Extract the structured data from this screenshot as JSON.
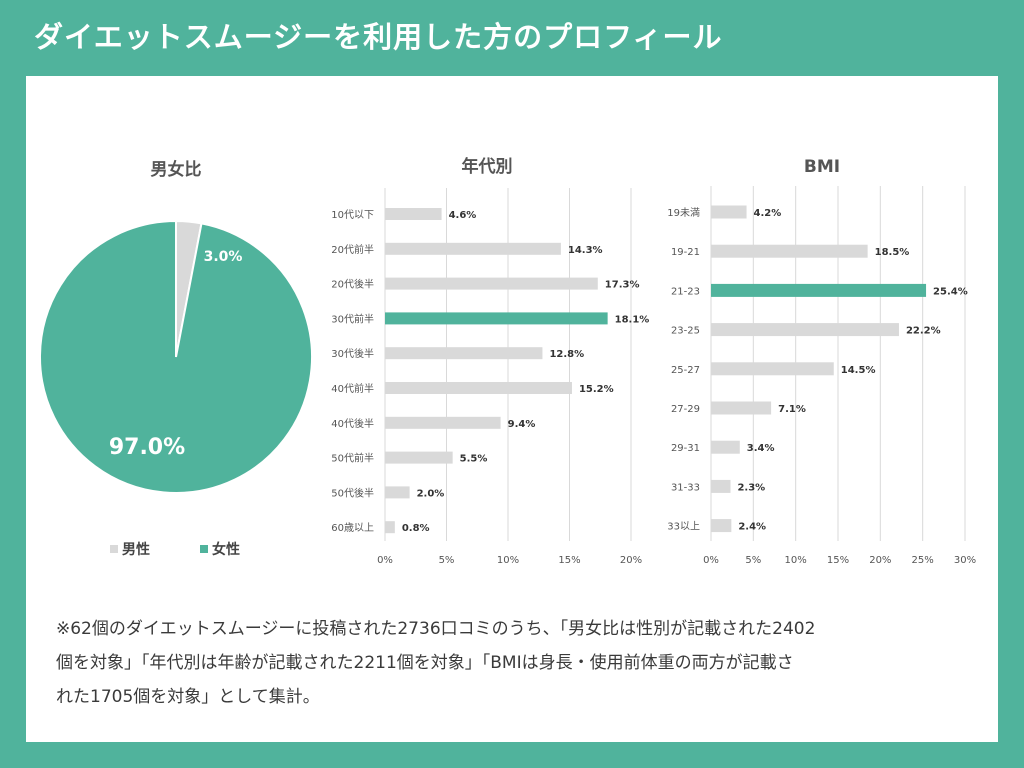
{
  "header": {
    "title": "ダイエットスムージーを利用した方のプロフィール"
  },
  "colors": {
    "accent": "#50b39c",
    "gray": "#d9d9d9",
    "white": "#ffffff"
  },
  "chart_data": [
    {
      "type": "pie",
      "title": "男女比",
      "categories": [
        "男性",
        "女性"
      ],
      "values": [
        3.0,
        97.0
      ],
      "labels": [
        "3.0%",
        "97.0%"
      ],
      "legend": "bottom"
    },
    {
      "type": "bar",
      "orientation": "horizontal",
      "title": "年代別",
      "categories": [
        "10代以下",
        "20代前半",
        "20代後半",
        "30代前半",
        "30代後半",
        "40代前半",
        "40代後半",
        "50代前半",
        "50代後半",
        "60歳以上"
      ],
      "values": [
        4.6,
        14.3,
        17.3,
        18.1,
        12.8,
        15.2,
        9.4,
        5.5,
        2.0,
        0.8
      ],
      "labels": [
        "4.6%",
        "14.3%",
        "17.3%",
        "18.1%",
        "12.8%",
        "15.2%",
        "9.4%",
        "5.5%",
        "2.0%",
        "0.8%"
      ],
      "highlight_index": 3,
      "xlim": [
        0,
        20
      ],
      "xticks": [
        "0%",
        "5%",
        "10%",
        "15%",
        "20%"
      ],
      "grid": true
    },
    {
      "type": "bar",
      "orientation": "horizontal",
      "title": "BMI",
      "categories": [
        "19未満",
        "19-21",
        "21-23",
        "23-25",
        "25-27",
        "27-29",
        "29-31",
        "31-33",
        "33以上"
      ],
      "values": [
        4.2,
        18.5,
        25.4,
        22.2,
        14.5,
        7.1,
        3.4,
        2.3,
        2.4
      ],
      "labels": [
        "4.2%",
        "18.5%",
        "25.4%",
        "22.2%",
        "14.5%",
        "7.1%",
        "3.4%",
        "2.3%",
        "2.4%"
      ],
      "highlight_index": 2,
      "xlim": [
        0,
        30
      ],
      "xticks": [
        "0%",
        "5%",
        "10%",
        "15%",
        "20%",
        "25%",
        "30%"
      ],
      "grid": true
    }
  ],
  "footnote": {
    "line1": "※62個のダイエットスムージーに投稿された2736口コミのうち、「男女比は性別が記載された2402",
    "line2": "個を対象」「年代別は年齢が記載された2211個を対象」「BMIは身長・使用前体重の両方が記載さ",
    "line3": "れた1705個を対象」として集計。"
  }
}
